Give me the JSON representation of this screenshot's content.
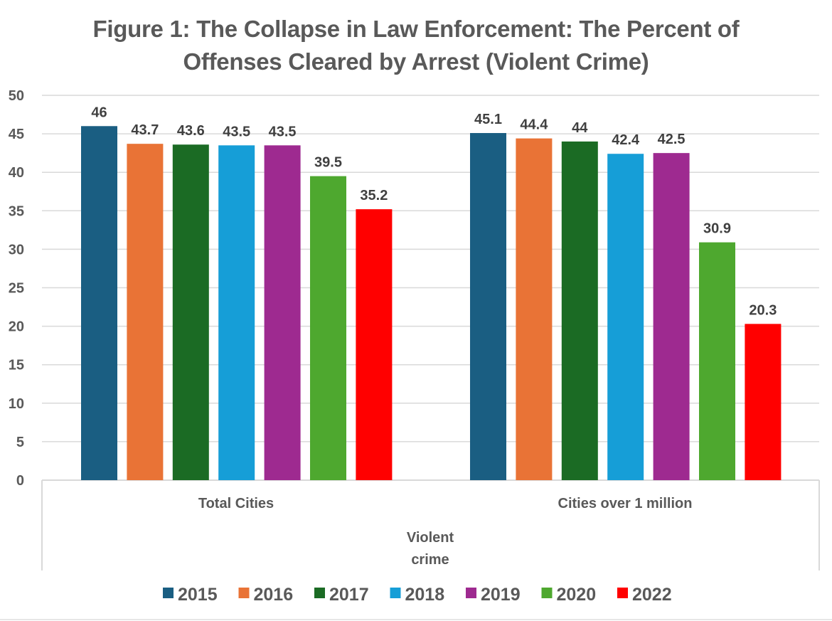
{
  "chart_data": {
    "type": "bar",
    "title_lines": [
      "Figure 1: The Collapse in Law Enforcement: The Percent of",
      "Offenses Cleared by Arrest (Violent Crime)"
    ],
    "categories": [
      "Total Cities",
      "Cities over 1 million"
    ],
    "category_group_label_lines": [
      "Violent",
      "crime"
    ],
    "series": [
      {
        "name": "2015",
        "color": "#1a5e82",
        "values": [
          46,
          45.1
        ]
      },
      {
        "name": "2016",
        "color": "#e97336",
        "values": [
          43.7,
          44.4
        ]
      },
      {
        "name": "2017",
        "color": "#1b6b24",
        "values": [
          43.6,
          44
        ]
      },
      {
        "name": "2018",
        "color": "#169ed7",
        "values": [
          43.5,
          42.4
        ]
      },
      {
        "name": "2019",
        "color": "#9e2a90",
        "values": [
          43.5,
          42.5
        ]
      },
      {
        "name": "2020",
        "color": "#4ea82f",
        "values": [
          39.5,
          30.9
        ]
      },
      {
        "name": "2022",
        "color": "#ff0000",
        "values": [
          35.2,
          20.3
        ]
      }
    ],
    "data_labels": [
      [
        "46",
        "45.1"
      ],
      [
        "43.7",
        "44.4"
      ],
      [
        "43.6",
        "44"
      ],
      [
        "43.5",
        "42.4"
      ],
      [
        "43.5",
        "42.5"
      ],
      [
        "39.5",
        "30.9"
      ],
      [
        "35.2",
        "20.3"
      ]
    ],
    "ylim": [
      0,
      50
    ],
    "yticks": [
      0,
      5,
      10,
      15,
      20,
      25,
      30,
      35,
      40,
      45,
      50
    ],
    "xlabel": "",
    "ylabel": "",
    "grid": true,
    "legend_position": "bottom"
  }
}
